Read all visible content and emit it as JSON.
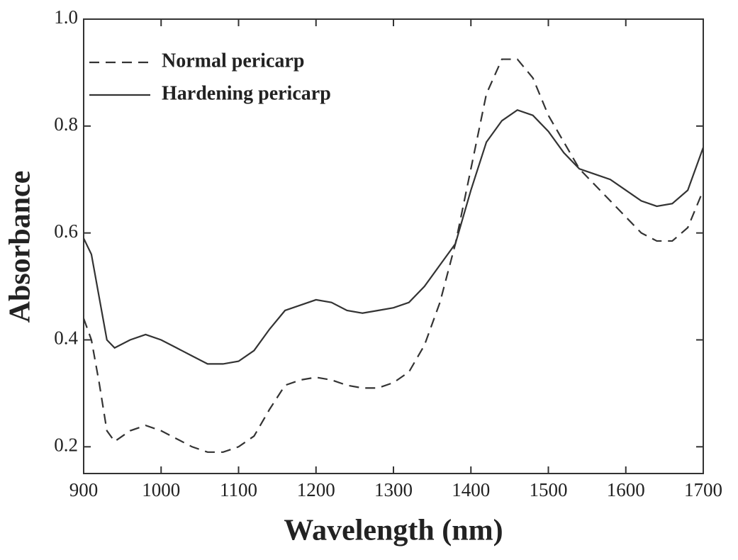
{
  "chart_data": {
    "type": "line",
    "x_label": "Wavelength (nm)",
    "y_label": "Absorbance",
    "x": [
      900,
      910,
      920,
      930,
      940,
      960,
      980,
      1000,
      1020,
      1040,
      1060,
      1080,
      1100,
      1120,
      1140,
      1160,
      1180,
      1200,
      1220,
      1240,
      1260,
      1280,
      1300,
      1320,
      1340,
      1360,
      1380,
      1400,
      1420,
      1440,
      1460,
      1480,
      1500,
      1520,
      1540,
      1560,
      1580,
      1600,
      1620,
      1640,
      1660,
      1680,
      1700
    ],
    "series": [
      {
        "name": "Normal pericarp",
        "color": "#333333",
        "dash": true,
        "values": [
          0.44,
          0.4,
          0.32,
          0.23,
          0.21,
          0.23,
          0.24,
          0.23,
          0.215,
          0.2,
          0.19,
          0.19,
          0.2,
          0.22,
          0.27,
          0.315,
          0.325,
          0.33,
          0.325,
          0.315,
          0.31,
          0.31,
          0.32,
          0.34,
          0.39,
          0.47,
          0.58,
          0.72,
          0.86,
          0.925,
          0.925,
          0.89,
          0.82,
          0.77,
          0.72,
          0.69,
          0.66,
          0.63,
          0.6,
          0.585,
          0.585,
          0.61,
          0.68
        ]
      },
      {
        "name": "Hardening pericarp",
        "color": "#333333",
        "dash": false,
        "values": [
          0.59,
          0.56,
          0.48,
          0.4,
          0.385,
          0.4,
          0.41,
          0.4,
          0.385,
          0.37,
          0.355,
          0.355,
          0.36,
          0.38,
          0.42,
          0.455,
          0.465,
          0.475,
          0.47,
          0.455,
          0.45,
          0.455,
          0.46,
          0.47,
          0.5,
          0.54,
          0.58,
          0.68,
          0.77,
          0.81,
          0.83,
          0.82,
          0.79,
          0.75,
          0.72,
          0.71,
          0.7,
          0.68,
          0.66,
          0.65,
          0.655,
          0.68,
          0.76
        ]
      }
    ],
    "xlim": [
      900,
      1700
    ],
    "xticks": [
      900,
      1000,
      1100,
      1200,
      1300,
      1400,
      1500,
      1600,
      1700
    ],
    "ylim": [
      0.15,
      1
    ],
    "yticks": [
      0.2,
      0.4,
      0.6,
      0.8,
      {
        "value": 1,
        "label": "1.0"
      }
    ],
    "legend": "upper left",
    "grid": false
  }
}
